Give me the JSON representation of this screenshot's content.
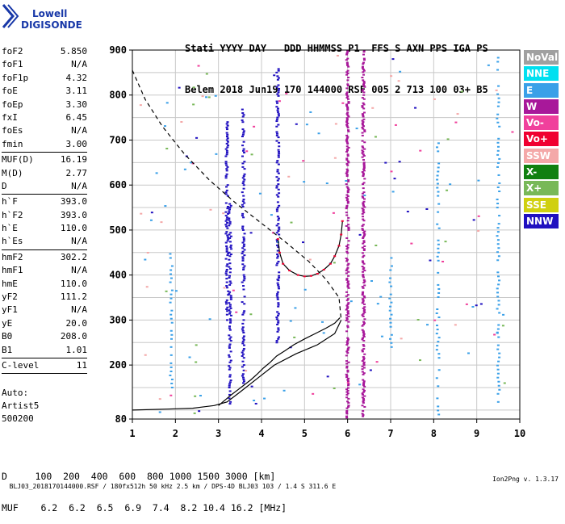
{
  "logo": {
    "line1": "Lowell",
    "line2": "DIGISONDE"
  },
  "header": {
    "line1": "Stati YYYY DAY   DDD HHMMSS P1  FFS S AXN PPS IGA PS",
    "line2": "Belem 2018 Jun19 170 144000 RSF 005 2 713 100 03+ B5"
  },
  "params_group1": [
    {
      "name": "foF2",
      "value": "5.850"
    },
    {
      "name": "foF1",
      "value": "N/A"
    },
    {
      "name": "foF1p",
      "value": "4.32"
    },
    {
      "name": "foE",
      "value": "3.11"
    },
    {
      "name": "foEp",
      "value": "3.30"
    },
    {
      "name": "fxI",
      "value": "6.45"
    },
    {
      "name": "foEs",
      "value": "N/A"
    },
    {
      "name": "fmin",
      "value": "3.00"
    }
  ],
  "params_group2": [
    {
      "name": "MUF(D)",
      "value": "16.19"
    },
    {
      "name": "M(D)",
      "value": "2.77"
    },
    {
      "name": "D",
      "value": "N/A"
    }
  ],
  "params_group3": [
    {
      "name": "h`F",
      "value": "393.0"
    },
    {
      "name": "h`F2",
      "value": "393.0"
    },
    {
      "name": "h`E",
      "value": "110.0"
    },
    {
      "name": "h`Es",
      "value": "N/A"
    }
  ],
  "params_group4": [
    {
      "name": "hmF2",
      "value": "302.2"
    },
    {
      "name": "hmF1",
      "value": "N/A"
    },
    {
      "name": "hmE",
      "value": "110.0"
    },
    {
      "name": "yF2",
      "value": "111.2"
    },
    {
      "name": "yF1",
      "value": "N/A"
    },
    {
      "name": "yE",
      "value": "20.0"
    },
    {
      "name": "B0",
      "value": "208.0"
    },
    {
      "name": "B1",
      "value": "1.01"
    }
  ],
  "params_group5": [
    {
      "name": "C-level",
      "value": "11"
    }
  ],
  "auto": {
    "line1": "Auto:",
    "line2": "Artist5",
    "line3": "500200"
  },
  "legend": [
    {
      "label": "NoVal",
      "color": "#a0a0a0"
    },
    {
      "label": "NNE",
      "color": "#00e0f0"
    },
    {
      "label": "E",
      "color": "#3aa0e8"
    },
    {
      "label": "W",
      "color": "#a8189a"
    },
    {
      "label": "Vo-",
      "color": "#f0409c"
    },
    {
      "label": "Vo+",
      "color": "#f00030"
    },
    {
      "label": "SSW",
      "color": "#f4a8a8"
    },
    {
      "label": "X-",
      "color": "#108010"
    },
    {
      "label": "X+",
      "color": "#78b858"
    },
    {
      "label": "SSE",
      "color": "#d0d010"
    },
    {
      "label": "NNW",
      "color": "#2010c0"
    }
  ],
  "bottom": {
    "line1": "D     100  200  400  600  800 1000 1500 3000 [km]",
    "line2": "MUF    6.2  6.2  6.5  6.9  7.4  8.2 10.4 16.2 [MHz]"
  },
  "footer": {
    "left": "BLJ03_2018170144000.RSF / 180fx512h 50 kHz 2.5 km / DPS-4D BLJ03 103 / 1.4 S 311.6 E",
    "right": "Ion2Png v. 1.3.17"
  },
  "chart_data": {
    "type": "scatter",
    "x_ticks": [
      "1",
      "2",
      "3",
      "4",
      "5",
      "6",
      "7",
      "8",
      "9",
      "10"
    ],
    "y_ticks": [
      "80",
      "200",
      "300",
      "400",
      "500",
      "600",
      "700",
      "800",
      "900"
    ],
    "xlim": [
      1,
      10
    ],
    "ylim": [
      80,
      900
    ],
    "grid": true,
    "profile_curve": [
      [
        1.0,
        855
      ],
      [
        1.3,
        790
      ],
      [
        1.7,
        730
      ],
      [
        2.2,
        670
      ],
      [
        2.8,
        610
      ],
      [
        3.4,
        560
      ],
      [
        4.0,
        515
      ],
      [
        4.6,
        470
      ],
      [
        5.1,
        430
      ],
      [
        5.5,
        390
      ],
      [
        5.8,
        350
      ],
      [
        5.85,
        300
      ],
      [
        5.7,
        270
      ],
      [
        5.3,
        245
      ],
      [
        4.8,
        225
      ],
      [
        4.3,
        200
      ],
      [
        3.9,
        170
      ],
      [
        3.5,
        140
      ],
      [
        3.2,
        118
      ],
      [
        2.9,
        110
      ],
      [
        2.4,
        104
      ],
      [
        1.8,
        102
      ],
      [
        1.0,
        100
      ]
    ],
    "trace_F": [
      [
        4.38,
        480
      ],
      [
        4.42,
        450
      ],
      [
        4.5,
        425
      ],
      [
        4.65,
        410
      ],
      [
        4.85,
        400
      ],
      [
        5.0,
        397
      ],
      [
        5.15,
        398
      ],
      [
        5.3,
        403
      ],
      [
        5.45,
        412
      ],
      [
        5.6,
        425
      ],
      [
        5.7,
        442
      ],
      [
        5.8,
        465
      ],
      [
        5.85,
        490
      ],
      [
        5.88,
        520
      ]
    ],
    "trace_E": [
      [
        3.0,
        110
      ],
      [
        3.1,
        118
      ],
      [
        3.2,
        126
      ],
      [
        3.3,
        134
      ],
      [
        3.45,
        145
      ],
      [
        3.6,
        156
      ],
      [
        3.75,
        167
      ],
      [
        3.9,
        180
      ],
      [
        4.05,
        194
      ],
      [
        4.2,
        206
      ],
      [
        4.35,
        220
      ],
      [
        4.55,
        232
      ],
      [
        4.75,
        245
      ],
      [
        5.0,
        258
      ],
      [
        5.25,
        270
      ],
      [
        5.5,
        282
      ],
      [
        5.7,
        293
      ],
      [
        5.82,
        305
      ]
    ],
    "echo_columns": [
      {
        "x": 3.2,
        "from": 300,
        "to": 740,
        "color": "#2010c0"
      },
      {
        "x": 3.27,
        "from": 110,
        "to": 560,
        "color": "#2010c0"
      },
      {
        "x": 3.58,
        "from": 160,
        "to": 770,
        "color": "#2010c0"
      },
      {
        "x": 4.38,
        "from": 250,
        "to": 860,
        "color": "#2010c0"
      },
      {
        "x": 6.0,
        "from": 80,
        "to": 900,
        "color": "#a8189a"
      },
      {
        "x": 6.37,
        "from": 80,
        "to": 900,
        "color": "#a8189a"
      },
      {
        "x": 7.0,
        "from": 240,
        "to": 440,
        "color": "#3aa0e8"
      },
      {
        "x": 8.1,
        "from": 90,
        "to": 700,
        "color": "#3aa0e8"
      },
      {
        "x": 9.5,
        "from": 100,
        "to": 890,
        "color": "#3aa0e8"
      },
      {
        "x": 1.9,
        "from": 150,
        "to": 450,
        "color": "#3aa0e8"
      }
    ]
  }
}
